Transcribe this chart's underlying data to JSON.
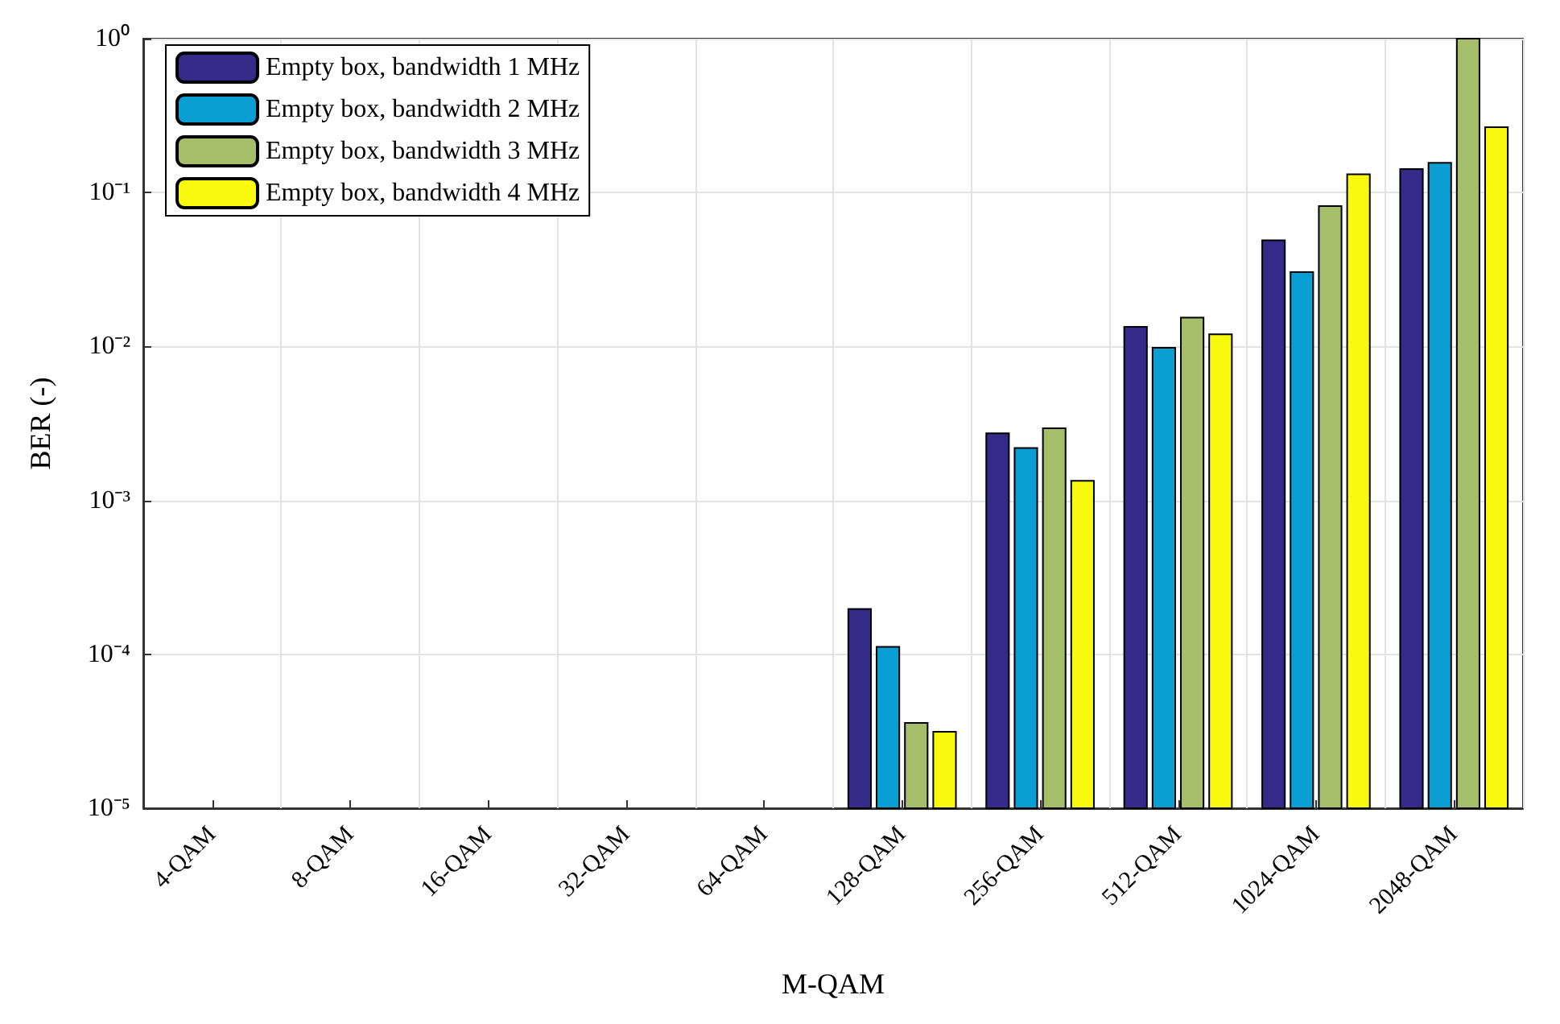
{
  "chart_data": {
    "type": "bar",
    "xlabel": "M-QAM",
    "ylabel": "BER (-)",
    "log": "y",
    "grid": true,
    "legend": "top left",
    "categories": [
      "4-QAM",
      "8-QAM",
      "16-QAM",
      "32-QAM",
      "64-QAM",
      "128-QAM",
      "256-QAM",
      "512-QAM",
      "1024-QAM",
      "2048-QAM"
    ],
    "ylim": [
      1e-05,
      1
    ],
    "yticks": [
      {
        "value": 1e-05,
        "label": "10⁻⁵"
      },
      {
        "value": 0.0001,
        "label": "10⁻⁴"
      },
      {
        "value": 0.001,
        "label": "10⁻³"
      },
      {
        "value": 0.01,
        "label": "10⁻²"
      },
      {
        "value": 0.1,
        "label": "10⁻¹"
      },
      {
        "value": 1,
        "label": "10⁰"
      }
    ],
    "series": [
      {
        "name": "Empty box, bandwidth 1 MHz",
        "color": "#352a87",
        "values": [
          null,
          null,
          null,
          null,
          null,
          0.000197,
          0.00273,
          0.0134,
          0.049,
          0.142
        ]
      },
      {
        "name": "Empty box, bandwidth 2 MHz",
        "color": "#0a9ed2",
        "values": [
          null,
          null,
          null,
          null,
          null,
          0.000112,
          0.00219,
          0.0098,
          0.0304,
          0.156
        ]
      },
      {
        "name": "Empty box, bandwidth 3 MHz",
        "color": "#a5be69",
        "values": [
          null,
          null,
          null,
          null,
          null,
          3.58e-05,
          0.00294,
          0.0154,
          0.0816,
          1
        ]
      },
      {
        "name": "Empty box, bandwidth 4 MHz",
        "color": "#f9f90f",
        "values": [
          null,
          null,
          null,
          null,
          null,
          3.14e-05,
          0.00134,
          0.012,
          0.1315,
          0.266
        ]
      }
    ]
  }
}
